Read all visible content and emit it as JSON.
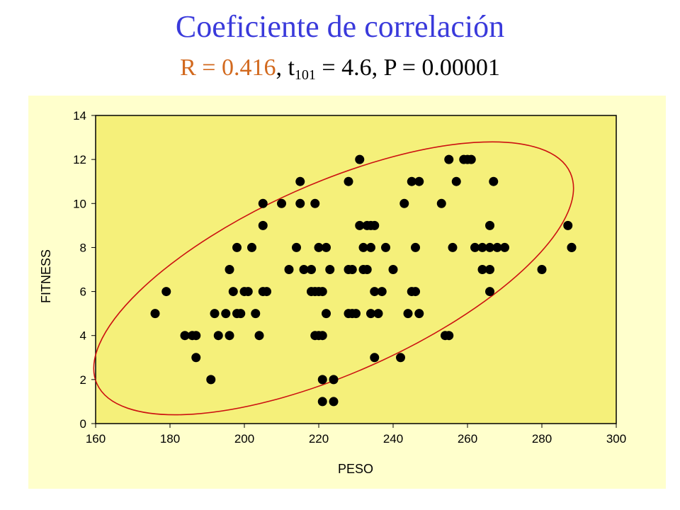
{
  "header": {
    "title": "Coeficiente de correlación",
    "stat_r": "R = 0.416",
    "stat_sep1": ", t",
    "stat_df": "101",
    "stat_rest": " = 4.6, P = 0.00001"
  },
  "colors": {
    "title": "#3a3adb",
    "stat_accent": "#d2691e",
    "outer_background": "#ffffcc",
    "plot_background": "#f5f07a",
    "points": "#000000",
    "ellipse": "#cc1111"
  },
  "chart_data": {
    "type": "scatter",
    "title": "Coeficiente de correlación",
    "xlabel": "PESO",
    "ylabel": "FITNESS",
    "xlim": [
      160,
      300
    ],
    "ylim": [
      0,
      14
    ],
    "xticks": [
      160,
      180,
      200,
      220,
      240,
      260,
      280,
      300
    ],
    "yticks": [
      0,
      2,
      4,
      6,
      8,
      10,
      12,
      14
    ],
    "grid": false,
    "legend": "none",
    "confidence_ellipse": {
      "center": [
        224,
        6.6
      ],
      "x_range": [
        162,
        291
      ],
      "y_range": [
        0.4,
        12.8
      ],
      "axis_angle_deg": 24
    },
    "series": [
      {
        "points": [
          [
            176,
            5
          ],
          [
            179,
            6
          ],
          [
            184,
            4
          ],
          [
            186,
            4
          ],
          [
            187,
            4
          ],
          [
            187,
            3
          ],
          [
            191,
            2
          ],
          [
            192,
            5
          ],
          [
            193,
            4
          ],
          [
            195,
            5
          ],
          [
            196,
            7
          ],
          [
            196,
            4
          ],
          [
            197,
            6
          ],
          [
            198,
            8
          ],
          [
            198,
            5
          ],
          [
            199,
            5
          ],
          [
            200,
            6
          ],
          [
            201,
            6
          ],
          [
            202,
            8
          ],
          [
            203,
            5
          ],
          [
            204,
            4
          ],
          [
            205,
            10
          ],
          [
            205,
            9
          ],
          [
            205,
            6
          ],
          [
            206,
            6
          ],
          [
            210,
            10
          ],
          [
            212,
            7
          ],
          [
            214,
            8
          ],
          [
            215,
            11
          ],
          [
            215,
            10
          ],
          [
            216,
            7
          ],
          [
            218,
            7
          ],
          [
            218,
            6
          ],
          [
            219,
            10
          ],
          [
            219,
            6
          ],
          [
            219,
            4
          ],
          [
            220,
            8
          ],
          [
            220,
            6
          ],
          [
            220,
            4
          ],
          [
            221,
            6
          ],
          [
            221,
            4
          ],
          [
            221,
            2
          ],
          [
            221,
            1
          ],
          [
            222,
            8
          ],
          [
            222,
            5
          ],
          [
            223,
            7
          ],
          [
            224,
            1
          ],
          [
            224,
            2
          ],
          [
            228,
            11
          ],
          [
            228,
            7
          ],
          [
            228,
            5
          ],
          [
            229,
            7
          ],
          [
            229,
            5
          ],
          [
            230,
            5
          ],
          [
            231,
            12
          ],
          [
            231,
            9
          ],
          [
            232,
            8
          ],
          [
            232,
            7
          ],
          [
            233,
            9
          ],
          [
            233,
            7
          ],
          [
            234,
            9
          ],
          [
            234,
            8
          ],
          [
            234,
            5
          ],
          [
            235,
            9
          ],
          [
            235,
            6
          ],
          [
            235,
            3
          ],
          [
            236,
            5
          ],
          [
            237,
            6
          ],
          [
            238,
            8
          ],
          [
            240,
            7
          ],
          [
            242,
            3
          ],
          [
            243,
            10
          ],
          [
            244,
            5
          ],
          [
            245,
            11
          ],
          [
            245,
            6
          ],
          [
            246,
            8
          ],
          [
            246,
            6
          ],
          [
            247,
            11
          ],
          [
            247,
            5
          ],
          [
            253,
            10
          ],
          [
            254,
            4
          ],
          [
            255,
            12
          ],
          [
            255,
            4
          ],
          [
            256,
            8
          ],
          [
            257,
            11
          ],
          [
            259,
            12
          ],
          [
            260,
            12
          ],
          [
            261,
            12
          ],
          [
            262,
            8
          ],
          [
            264,
            7
          ],
          [
            264,
            8
          ],
          [
            266,
            9
          ],
          [
            266,
            8
          ],
          [
            266,
            7
          ],
          [
            266,
            6
          ],
          [
            267,
            11
          ],
          [
            268,
            8
          ],
          [
            270,
            8
          ],
          [
            280,
            7
          ],
          [
            287,
            9
          ],
          [
            288,
            8
          ],
          [
            288,
            8
          ]
        ]
      }
    ]
  }
}
